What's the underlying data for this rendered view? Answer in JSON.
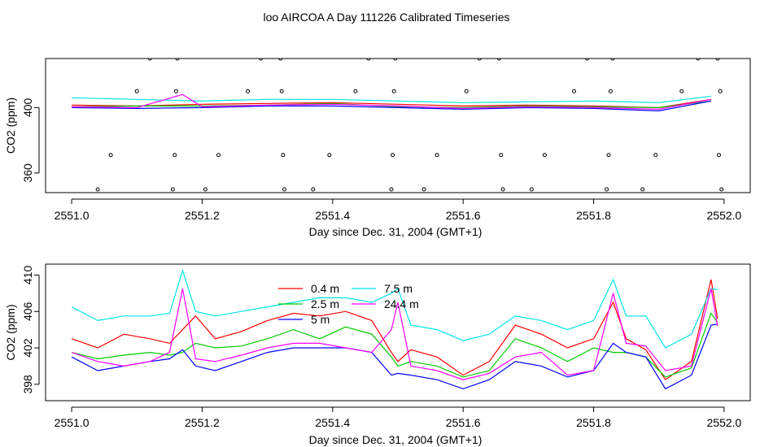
{
  "page": {
    "title": "loo AIRCOA A  Day 111226  Calibrated Timeseries"
  },
  "chart_data": [
    {
      "type": "scatter",
      "xlabel": "Day since Dec. 31, 2004 (GMT+1)",
      "ylabel": "CO2 (ppm)",
      "xlim": [
        2550.96,
        2552.04
      ],
      "ylim": [
        348,
        430
      ],
      "x_ticks": [
        2551.0,
        2551.2,
        2551.4,
        2551.6,
        2551.8,
        2552.0
      ],
      "x_tick_labels": [
        "2551.0",
        "2551.2",
        "2551.4",
        "2551.6",
        "2551.8",
        "2552.0"
      ],
      "y_ticks": [
        360,
        400
      ],
      "y_tick_labels": [
        "360",
        "400"
      ],
      "points": [
        {
          "x": 2551.04,
          "y": 350
        },
        {
          "x": 2551.06,
          "y": 371
        },
        {
          "x": 2551.1,
          "y": 410
        },
        {
          "x": 2551.12,
          "y": 430
        },
        {
          "x": 2551.155,
          "y": 350
        },
        {
          "x": 2551.158,
          "y": 371
        },
        {
          "x": 2551.16,
          "y": 410
        },
        {
          "x": 2551.162,
          "y": 430
        },
        {
          "x": 2551.205,
          "y": 350
        },
        {
          "x": 2551.225,
          "y": 371
        },
        {
          "x": 2551.27,
          "y": 410
        },
        {
          "x": 2551.29,
          "y": 430
        },
        {
          "x": 2551.32,
          "y": 430
        },
        {
          "x": 2551.322,
          "y": 410
        },
        {
          "x": 2551.324,
          "y": 371
        },
        {
          "x": 2551.326,
          "y": 350
        },
        {
          "x": 2551.37,
          "y": 350
        },
        {
          "x": 2551.395,
          "y": 371
        },
        {
          "x": 2551.435,
          "y": 410
        },
        {
          "x": 2551.455,
          "y": 430
        },
        {
          "x": 2551.49,
          "y": 350
        },
        {
          "x": 2551.492,
          "y": 371
        },
        {
          "x": 2551.494,
          "y": 410
        },
        {
          "x": 2551.496,
          "y": 430
        },
        {
          "x": 2551.54,
          "y": 350
        },
        {
          "x": 2551.56,
          "y": 371
        },
        {
          "x": 2551.605,
          "y": 410
        },
        {
          "x": 2551.625,
          "y": 430
        },
        {
          "x": 2551.655,
          "y": 430
        },
        {
          "x": 2551.658,
          "y": 371
        },
        {
          "x": 2551.661,
          "y": 350
        },
        {
          "x": 2551.705,
          "y": 350
        },
        {
          "x": 2551.725,
          "y": 371
        },
        {
          "x": 2551.77,
          "y": 410
        },
        {
          "x": 2551.79,
          "y": 430
        },
        {
          "x": 2551.82,
          "y": 350
        },
        {
          "x": 2551.823,
          "y": 371
        },
        {
          "x": 2551.826,
          "y": 410
        },
        {
          "x": 2551.829,
          "y": 430
        },
        {
          "x": 2551.875,
          "y": 350
        },
        {
          "x": 2551.895,
          "y": 371
        },
        {
          "x": 2551.935,
          "y": 410
        },
        {
          "x": 2551.96,
          "y": 430
        },
        {
          "x": 2551.99,
          "y": 430
        },
        {
          "x": 2551.992,
          "y": 371
        },
        {
          "x": 2551.994,
          "y": 410
        },
        {
          "x": 2551.996,
          "y": 350
        }
      ],
      "series": [
        {
          "color": "#ff0000",
          "x": [
            2551.0,
            2551.1,
            2551.2,
            2551.3,
            2551.4,
            2551.5,
            2551.6,
            2551.7,
            2551.8,
            2551.9,
            2551.98
          ],
          "values": [
            401.5,
            401,
            402,
            402.5,
            403,
            402,
            401,
            401.5,
            401,
            400,
            405
          ]
        },
        {
          "color": "#00cc00",
          "x": [
            2551.0,
            2551.1,
            2551.2,
            2551.3,
            2551.4,
            2551.5,
            2551.6,
            2551.7,
            2551.8,
            2551.9,
            2551.98
          ],
          "values": [
            400.5,
            401,
            401,
            401.5,
            402.5,
            400.5,
            400,
            401,
            400.5,
            400,
            404
          ]
        },
        {
          "color": "#0000ff",
          "x": [
            2551.0,
            2551.1,
            2551.2,
            2551.3,
            2551.4,
            2551.5,
            2551.6,
            2551.7,
            2551.8,
            2551.9,
            2551.98
          ],
          "values": [
            400,
            399.5,
            400,
            401,
            401,
            400,
            399,
            400,
            399.5,
            398,
            404
          ]
        },
        {
          "color": "#00e5e5",
          "x": [
            2551.0,
            2551.1,
            2551.2,
            2551.3,
            2551.4,
            2551.5,
            2551.6,
            2551.7,
            2551.8,
            2551.9,
            2551.98
          ],
          "values": [
            406,
            405,
            404,
            405,
            405,
            404,
            403,
            403.5,
            404,
            403,
            407
          ]
        },
        {
          "color": "#ff00ff",
          "x": [
            2551.0,
            2551.1,
            2551.17,
            2551.2,
            2551.3,
            2551.4,
            2551.5,
            2551.6,
            2551.7,
            2551.8,
            2551.9,
            2551.98
          ],
          "values": [
            400.5,
            400,
            408,
            400.5,
            401.5,
            402,
            401,
            399.5,
            400.5,
            400,
            399,
            405
          ]
        }
      ]
    },
    {
      "type": "line",
      "xlabel": "Day since Dec. 31, 2004 (GMT+1)",
      "ylabel": "CO2 (ppm)",
      "xlim": [
        2550.96,
        2552.04
      ],
      "ylim": [
        396.2,
        411.2
      ],
      "x_ticks": [
        2551.0,
        2551.2,
        2551.4,
        2551.6,
        2551.8,
        2552.0
      ],
      "x_tick_labels": [
        "2551.0",
        "2551.2",
        "2551.4",
        "2551.6",
        "2551.8",
        "2552.0"
      ],
      "y_ticks": [
        398,
        402,
        406,
        410
      ],
      "y_tick_labels": [
        "398",
        "402",
        "406",
        "410"
      ],
      "legend_position": "top-center",
      "legend": [
        {
          "name": "0.4 m",
          "color": "#ff0000"
        },
        {
          "name": "2.5 m",
          "color": "#00cc00"
        },
        {
          "name": "5 m",
          "color": "#0000ff"
        },
        {
          "name": "7.5 m",
          "color": "#00e5e5"
        },
        {
          "name": "24.4 m",
          "color": "#ff00ff"
        }
      ],
      "x": [
        2551.0,
        2551.04,
        2551.08,
        2551.12,
        2551.15,
        2551.17,
        2551.19,
        2551.22,
        2551.26,
        2551.3,
        2551.34,
        2551.38,
        2551.42,
        2551.46,
        2551.49,
        2551.5,
        2551.52,
        2551.56,
        2551.6,
        2551.64,
        2551.68,
        2551.72,
        2551.76,
        2551.8,
        2551.83,
        2551.85,
        2551.88,
        2551.91,
        2551.95,
        2551.98,
        2551.99
      ],
      "series": [
        {
          "name": "0.4 m",
          "color": "#ff0000",
          "values": [
            403,
            402,
            403.5,
            403,
            402.5,
            404,
            405.5,
            403,
            403.8,
            405,
            405.8,
            405.5,
            406,
            405,
            401.5,
            400.5,
            401.8,
            401,
            399,
            400.5,
            404.5,
            403.5,
            402,
            403,
            407,
            403,
            401.8,
            398.5,
            400.5,
            409.5,
            405.2
          ]
        },
        {
          "name": "2.5 m",
          "color": "#00cc00",
          "values": [
            401.5,
            400.8,
            401.2,
            401.5,
            401.2,
            401.5,
            402.5,
            402,
            402.2,
            403,
            404,
            403,
            404.3,
            403.5,
            401,
            400,
            400.5,
            400,
            398.8,
            399.5,
            403,
            402,
            400.5,
            402,
            401.5,
            401.5,
            401,
            398.8,
            399.8,
            405.8,
            404.8
          ]
        },
        {
          "name": "5 m",
          "color": "#0000ff",
          "values": [
            401,
            399.5,
            400,
            400.5,
            400.8,
            401.8,
            400,
            399.5,
            400.5,
            401.5,
            402,
            402,
            402,
            401.5,
            399,
            399.2,
            399,
            398.5,
            397.5,
            398.5,
            400.5,
            400,
            398.8,
            399.5,
            402.5,
            401.5,
            401,
            397.5,
            399,
            404.5,
            404.6
          ]
        },
        {
          "name": "7.5 m",
          "color": "#00e5e5",
          "values": [
            406.5,
            405,
            405.5,
            405.5,
            405.8,
            410.5,
            406,
            405.5,
            406,
            406.5,
            407,
            407.5,
            407.5,
            407,
            408,
            408.5,
            404.5,
            404,
            402.8,
            403.5,
            405.5,
            405,
            404,
            405,
            409.5,
            405.5,
            405.5,
            402,
            403.5,
            408.5,
            408.4
          ]
        },
        {
          "name": "24.4 m",
          "color": "#ff00ff",
          "values": [
            401.5,
            400.5,
            400,
            400.5,
            401.5,
            408.5,
            400.8,
            400.5,
            401.2,
            402,
            402.5,
            402.5,
            402,
            401.5,
            404,
            407,
            400,
            399.5,
            398.5,
            399.2,
            401,
            401.5,
            399,
            399.5,
            408,
            402.5,
            402.2,
            399.5,
            400,
            408.5,
            404.4
          ]
        }
      ]
    }
  ]
}
